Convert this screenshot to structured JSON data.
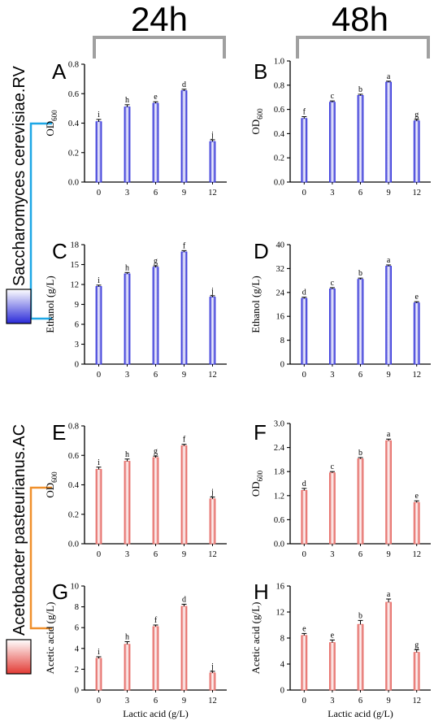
{
  "header": {
    "left_time": "24h",
    "right_time": "48h"
  },
  "organisms": {
    "top": "Saccharomyces cerevisiae.RV",
    "bottom": "Acetobacter pasteurianus.AC"
  },
  "colors": {
    "blue_bar": "#3a3adf",
    "red_bar": "#e8706b",
    "bracket_blue": "#1ea7e6",
    "bracket_orange": "#f0902c",
    "header_bracket": "#a0a0a0"
  },
  "chart_data": [
    {
      "panel": "A",
      "type": "bar",
      "series_color": "blue",
      "categories": [
        "0",
        "3",
        "6",
        "9",
        "12"
      ],
      "values": [
        0.41,
        0.51,
        0.535,
        0.62,
        0.275
      ],
      "errors": [
        0.015,
        0.015,
        0.01,
        0.01,
        0.012
      ],
      "letters": [
        "i",
        "h",
        "e",
        "d",
        "j"
      ],
      "ylabel": "OD",
      "ylabel_sub": "600",
      "ylim": [
        0,
        0.8
      ],
      "yticks": [
        "0.0",
        "0.2",
        "0.4",
        "0.6",
        "0.8"
      ],
      "xlabel": ""
    },
    {
      "panel": "B",
      "type": "bar",
      "series_color": "blue",
      "categories": [
        "0",
        "3",
        "6",
        "9",
        "12"
      ],
      "values": [
        0.525,
        0.66,
        0.715,
        0.825,
        0.505
      ],
      "errors": [
        0.015,
        0.01,
        0.01,
        0.008,
        0.012
      ],
      "letters": [
        "f",
        "c",
        "b",
        "a",
        "g"
      ],
      "ylabel": "OD",
      "ylabel_sub": "600",
      "ylim": [
        0,
        1.0
      ],
      "yticks": [
        "0.0",
        "0.2",
        "0.4",
        "0.6",
        "0.8",
        "1.0"
      ],
      "xlabel": ""
    },
    {
      "panel": "C",
      "type": "bar",
      "series_color": "blue",
      "categories": [
        "0",
        "3",
        "6",
        "9",
        "12"
      ],
      "values": [
        11.7,
        13.6,
        14.6,
        16.9,
        10.1
      ],
      "errors": [
        0.2,
        0.2,
        0.2,
        0.2,
        0.2
      ],
      "letters": [
        "i",
        "h",
        "g",
        "f",
        "j"
      ],
      "ylabel": "Ethanol (g/L)",
      "ylabel_sub": "",
      "ylim": [
        0,
        18
      ],
      "yticks": [
        "0",
        "3",
        "6",
        "9",
        "12",
        "15",
        "18"
      ],
      "xlabel": ""
    },
    {
      "panel": "D",
      "type": "bar",
      "series_color": "blue",
      "categories": [
        "0",
        "3",
        "6",
        "9",
        "12"
      ],
      "values": [
        22.0,
        25.2,
        28.4,
        32.8,
        20.5
      ],
      "errors": [
        0.4,
        0.4,
        0.4,
        0.4,
        0.4
      ],
      "letters": [
        "d",
        "c",
        "b",
        "a",
        "e"
      ],
      "ylabel": "Ethanol (g/L)",
      "ylabel_sub": "",
      "ylim": [
        0,
        40
      ],
      "yticks": [
        "0",
        "8",
        "16",
        "24",
        "32",
        "40"
      ],
      "xlabel": ""
    },
    {
      "panel": "E",
      "type": "bar",
      "series_color": "red",
      "categories": [
        "0",
        "3",
        "6",
        "9",
        "12"
      ],
      "values": [
        0.505,
        0.56,
        0.585,
        0.665,
        0.305
      ],
      "errors": [
        0.015,
        0.015,
        0.01,
        0.01,
        0.012
      ],
      "letters": [
        "i",
        "h",
        "g",
        "f",
        "j"
      ],
      "ylabel": "OD",
      "ylabel_sub": "600",
      "ylim": [
        0,
        0.8
      ],
      "yticks": [
        "0.0",
        "0.2",
        "0.4",
        "0.6",
        "0.8"
      ],
      "xlabel": ""
    },
    {
      "panel": "F",
      "type": "bar",
      "series_color": "red",
      "categories": [
        "0",
        "3",
        "6",
        "9",
        "12"
      ],
      "values": [
        1.33,
        1.77,
        2.12,
        2.57,
        1.03
      ],
      "errors": [
        0.05,
        0.03,
        0.03,
        0.04,
        0.04
      ],
      "letters": [
        "d",
        "c",
        "b",
        "a",
        "e"
      ],
      "ylabel": "OD",
      "ylabel_sub": "600",
      "ylim": [
        0,
        3.0
      ],
      "yticks": [
        "0.0",
        "0.6",
        "1.2",
        "1.8",
        "2.4",
        "3.0"
      ],
      "xlabel": ""
    },
    {
      "panel": "G",
      "type": "bar",
      "series_color": "red",
      "categories": [
        "0",
        "3",
        "6",
        "9",
        "12"
      ],
      "values": [
        3.05,
        4.4,
        6.1,
        8.05,
        1.65
      ],
      "errors": [
        0.15,
        0.25,
        0.15,
        0.2,
        0.15
      ],
      "letters": [
        "i",
        "h",
        "f",
        "d",
        "j"
      ],
      "ylabel": "Acetic acid (g/L)",
      "ylabel_sub": "",
      "ylim": [
        0,
        10
      ],
      "yticks": [
        "0",
        "2",
        "4",
        "6",
        "8",
        "10"
      ],
      "xlabel": "Lactic acid (g/L)"
    },
    {
      "panel": "H",
      "type": "bar",
      "series_color": "red",
      "categories": [
        "0",
        "3",
        "6",
        "9",
        "12"
      ],
      "values": [
        8.4,
        7.3,
        10.1,
        13.5,
        5.8
      ],
      "errors": [
        0.3,
        0.4,
        0.6,
        0.5,
        0.4
      ],
      "letters": [
        "e",
        "e",
        "b",
        "a",
        "g"
      ],
      "ylabel": "Acetic acid (g/L)",
      "ylabel_sub": "",
      "ylim": [
        0,
        16
      ],
      "yticks": [
        "0",
        "4",
        "8",
        "12",
        "16"
      ],
      "xlabel": "Lactic acid (g/L)"
    }
  ]
}
